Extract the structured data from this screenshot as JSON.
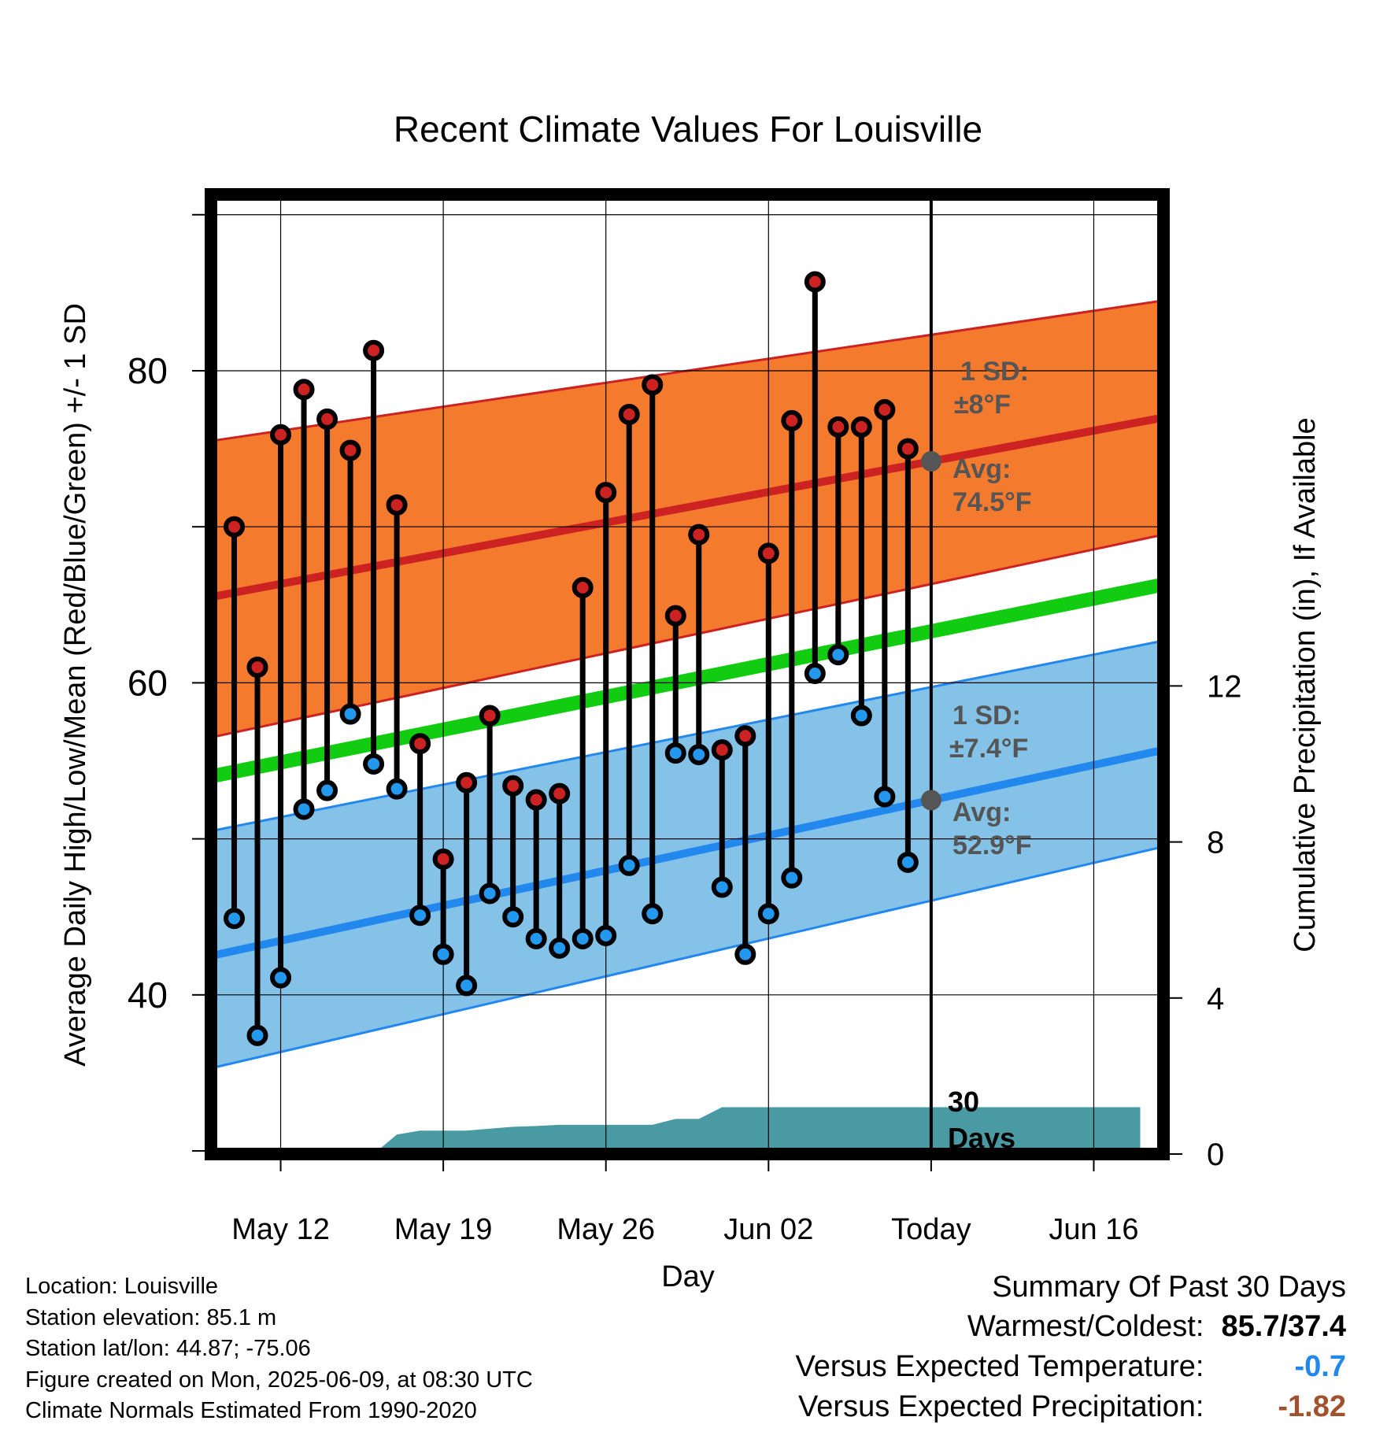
{
  "chart_data": {
    "type": "line",
    "title": "Recent Climate Values For Louisville",
    "xlabel": "Day",
    "ylabel_left": "Average Daily High/Low/Mean (Red/Blue/Green) +/- 1 SD",
    "ylabel_right": "Cumulative Precipitation (in), If Available",
    "x_tick_labels": [
      "May 12",
      "May 19",
      "May 26",
      "Jun 02",
      "Today",
      "Jun 16"
    ],
    "x_tick_days": [
      3,
      10,
      17,
      24,
      31,
      38
    ],
    "x_range_days": [
      0,
      41
    ],
    "y_left_ticks": [
      40,
      60,
      80
    ],
    "y_left_range": [
      29.8,
      91.3
    ],
    "y_right_ticks": [
      0,
      4,
      8,
      12
    ],
    "y_right_range": [
      0,
      24.6
    ],
    "normals": {
      "high_avg": [
        65.5,
        77.0
      ],
      "high_upper": [
        75.5,
        84.5
      ],
      "high_lower": [
        56.5,
        69.5
      ],
      "mean": [
        54.0,
        66.3
      ],
      "low_avg": [
        42.5,
        55.7
      ],
      "low_upper": [
        50.5,
        62.7
      ],
      "low_lower": [
        35.3,
        49.5
      ]
    },
    "series": [
      {
        "name": "High",
        "color": "#cc2222",
        "values": [
          70.0,
          61.0,
          75.9,
          78.8,
          76.9,
          74.9,
          81.3,
          71.4,
          56.1,
          48.7,
          53.6,
          57.9,
          53.4,
          52.5,
          52.9,
          66.1,
          72.2,
          77.2,
          79.1,
          64.3,
          69.5,
          55.7,
          56.6,
          68.3,
          76.8,
          85.7,
          76.4,
          76.4,
          77.5,
          75.0
        ]
      },
      {
        "name": "Low",
        "color": "#2299ee",
        "values": [
          44.9,
          37.4,
          41.1,
          51.9,
          53.1,
          58.0,
          54.8,
          53.2,
          45.1,
          42.6,
          40.6,
          46.5,
          45.0,
          43.6,
          43.0,
          43.6,
          43.8,
          48.3,
          45.2,
          55.5,
          55.4,
          46.9,
          42.6,
          45.2,
          47.5,
          60.6,
          61.8,
          57.9,
          52.7,
          48.5
        ]
      }
    ],
    "precip_cumulative": [
      0.0,
      0.0,
      0.0,
      0.0,
      0.0,
      0.0,
      0.0,
      0.0,
      0.5,
      0.6,
      0.6,
      0.6,
      0.65,
      0.7,
      0.72,
      0.75,
      0.75,
      0.75,
      0.75,
      0.75,
      0.9,
      0.9,
      1.2,
      1.2,
      1.2,
      1.2,
      1.2,
      1.2,
      1.2,
      1.2,
      1.2,
      1.2,
      1.2,
      1.2,
      1.2,
      1.2,
      1.2,
      1.2,
      1.2,
      1.2,
      1.2
    ],
    "colors": {
      "high_band": "#f47a2e",
      "high_line": "#cc2222",
      "mean_line": "#11cc11",
      "low_band": "#85c2e8",
      "low_line": "#2288ee",
      "precip": "#4a9aa3",
      "annotation": "#555555"
    },
    "annotations": {
      "high_sd_label": "1 SD:",
      "high_sd_value": "±8°F",
      "high_avg_label": "Avg:",
      "high_avg_value": "74.5°F",
      "low_sd_label": "1 SD:",
      "low_sd_value": "±7.4°F",
      "low_avg_label": "Avg:",
      "low_avg_value": "52.9°F",
      "window_label_1": "30",
      "window_label_2": "Days"
    }
  },
  "station": {
    "location": "Location: Louisville",
    "elevation": "Station elevation: 85.1 m",
    "latlon": "Station lat/lon: 44.87; -75.06",
    "created": "Figure created on Mon, 2025-06-09, at 08:30 UTC",
    "normals": "Climate Normals Estimated From 1990-2020"
  },
  "summary": {
    "header": "Summary Of Past 30 Days",
    "warm_cold_label": "Warmest/Coldest:",
    "warm_cold_value": "85.7/37.4",
    "temp_label": "Versus Expected Temperature:",
    "temp_value": "-0.7",
    "temp_color": "#2288ee",
    "precip_label": "Versus Expected Precipitation:",
    "precip_value": "-1.82",
    "precip_color": "#a0522d"
  }
}
